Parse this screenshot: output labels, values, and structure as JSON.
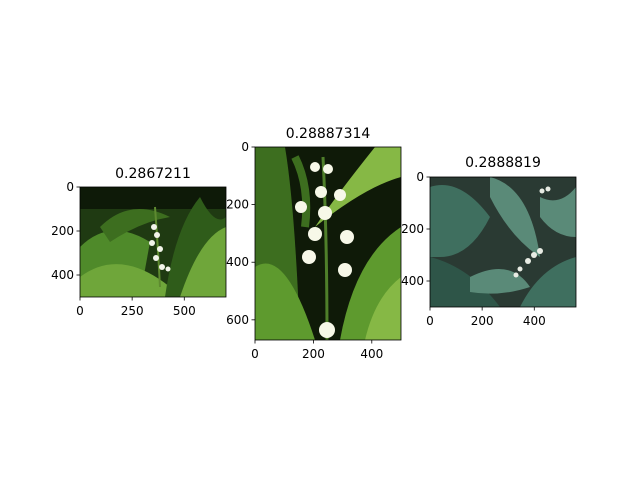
{
  "chart_data": [
    {
      "type": "image",
      "title": "0.2867211",
      "image_description": "lily-of-the-valley sprig with small white bell flowers among dark green broad leaves",
      "xlim": [
        0,
        700
      ],
      "ylim": [
        500,
        0
      ],
      "x_ticks": [
        {
          "value": 0,
          "label": "0"
        },
        {
          "value": 250,
          "label": "250"
        },
        {
          "value": 500,
          "label": "500"
        }
      ],
      "y_ticks": [
        {
          "value": 0,
          "label": "0"
        },
        {
          "value": 200,
          "label": "200"
        },
        {
          "value": 400,
          "label": "400"
        }
      ],
      "palette": {
        "bg": "#1f3a12",
        "leaf_a": "#4f8a2a",
        "leaf_b": "#6fa63a",
        "leaf_c": "#2f5c1a",
        "flower": "#f2f4ea"
      }
    },
    {
      "type": "image",
      "title": "0.28887314",
      "image_description": "close-up of lily-of-the-valley stem with white bell flowers between bright green leaves",
      "xlim": [
        0,
        500
      ],
      "ylim": [
        670,
        0
      ],
      "x_ticks": [
        {
          "value": 0,
          "label": "0"
        },
        {
          "value": 200,
          "label": "200"
        },
        {
          "value": 400,
          "label": "400"
        }
      ],
      "y_ticks": [
        {
          "value": 0,
          "label": "0"
        },
        {
          "value": 200,
          "label": "200"
        },
        {
          "value": 400,
          "label": "400"
        },
        {
          "value": 600,
          "label": "600"
        }
      ],
      "palette": {
        "bg": "#0f1a08",
        "leaf_a": "#5e9a2e",
        "leaf_b": "#86b845",
        "leaf_c": "#3d6e1f",
        "flower": "#f7f8e8"
      }
    },
    {
      "type": "image",
      "title": "0.2888819",
      "image_description": "lily-of-the-valley with blue-green broad leaves and small white flowers",
      "xlim": [
        0,
        560
      ],
      "ylim": [
        500,
        0
      ],
      "x_ticks": [
        {
          "value": 0,
          "label": "0"
        },
        {
          "value": 200,
          "label": "200"
        },
        {
          "value": 400,
          "label": "400"
        }
      ],
      "y_ticks": [
        {
          "value": 0,
          "label": "0"
        },
        {
          "value": 200,
          "label": "200"
        },
        {
          "value": 400,
          "label": "400"
        }
      ],
      "palette": {
        "bg": "#2a3a33",
        "leaf_a": "#3f6f5f",
        "leaf_b": "#5a8a78",
        "leaf_c": "#2e5548",
        "flower": "#e8ece4"
      }
    }
  ]
}
